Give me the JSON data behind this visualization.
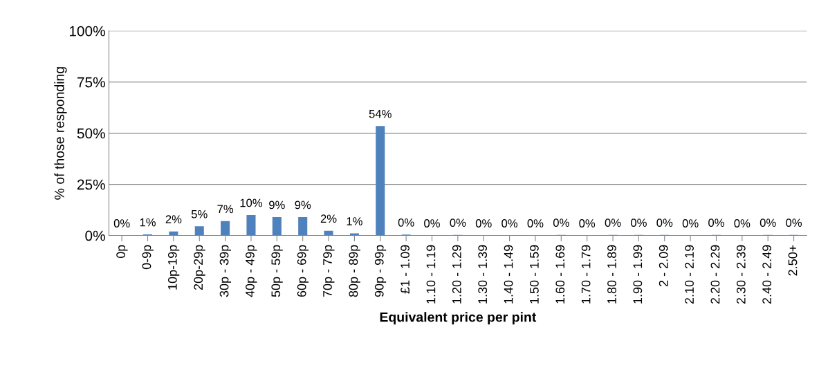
{
  "chart_data": {
    "type": "bar",
    "xlabel": "Equivalent price per pint",
    "ylabel": "% of those responding",
    "categories": [
      "0p",
      "0-9p",
      "10p-19p",
      "20p-29p",
      "30p - 39p",
      "40p - 49p",
      "50p - 59p",
      "60p - 69p",
      "70p - 79p",
      "80p - 89p",
      "90p - 99p",
      "£1 - 1.09",
      "1.10 - 1.19",
      "1.20 - 1.29",
      "1.30 - 1.39",
      "1.40 - 1.49",
      "1.50 - 1.59",
      "1.60 - 1.69",
      "1.70 - 1.79",
      "1.80 - 1.89",
      "1.90 - 1.99",
      "2 - 2.09",
      "2.10 - 2.19",
      "2.20 - 2.29",
      "2.30 - 2.39",
      "2.40 - 2.49",
      "2.50+"
    ],
    "values": [
      0,
      0.5,
      2,
      4.5,
      7,
      10,
      9,
      9,
      2.3,
      1,
      53.5,
      0.4,
      0,
      0.3,
      0,
      0,
      0,
      0.3,
      0,
      0.3,
      0.3,
      0.3,
      0,
      0.3,
      0,
      0.3,
      0.3
    ],
    "value_labels": [
      "0%",
      "1%",
      "2%",
      "5%",
      "7%",
      "10%",
      "9%",
      "9%",
      "2%",
      "1%",
      "54%",
      "0%",
      "0%",
      "0%",
      "0%",
      "0%",
      "0%",
      "0%",
      "0%",
      "0%",
      "0%",
      "0%",
      "0%",
      "0%",
      "0%",
      "0%",
      "0%"
    ],
    "color": "#4f81bd",
    "ylim": [
      0,
      100
    ],
    "yticks": [
      {
        "value": 0,
        "label": "0%"
      },
      {
        "value": 25,
        "label": "25%"
      },
      {
        "value": 50,
        "label": "50%"
      },
      {
        "value": 75,
        "label": "75%"
      },
      {
        "value": 100,
        "label": "100%"
      }
    ],
    "grid": "y",
    "legend": false
  }
}
